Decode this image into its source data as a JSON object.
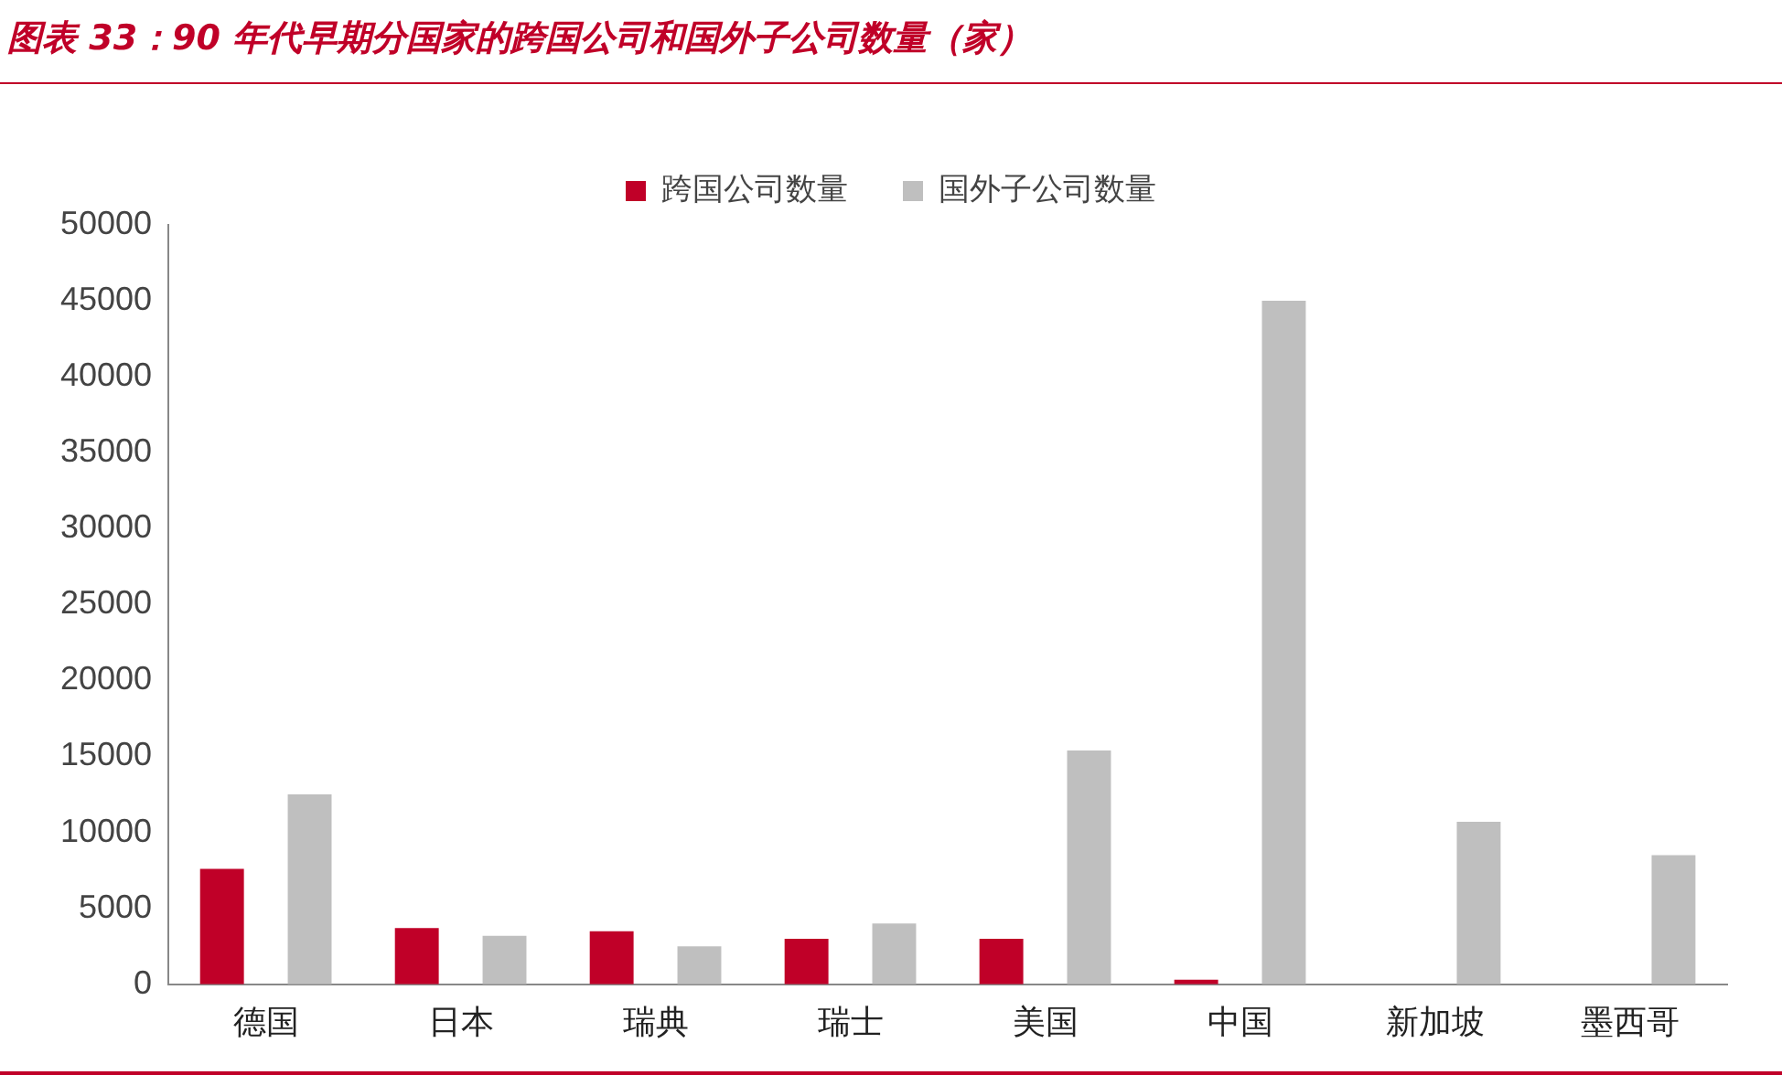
{
  "chart_data": {
    "type": "bar",
    "title": "图表 33：90 年代早期分国家的跨国公司和国外子公司数量（家）",
    "categories": [
      "德国",
      "日本",
      "瑞典",
      "瑞士",
      "美国",
      "中国",
      "新加坡",
      "墨西哥"
    ],
    "series": [
      {
        "name": "跨国公司数量",
        "color": "#c00028",
        "values": [
          7600,
          3700,
          3500,
          3000,
          3000,
          300,
          null,
          null
        ]
      },
      {
        "name": "国外子公司数量",
        "color": "#bfbfbf",
        "values": [
          12500,
          3200,
          2500,
          4000,
          15400,
          45000,
          10700,
          8500
        ]
      }
    ],
    "ylim": [
      0,
      50000
    ],
    "yticks": [
      0,
      5000,
      10000,
      15000,
      20000,
      25000,
      30000,
      35000,
      40000,
      45000,
      50000
    ],
    "grid": false,
    "legend": "top"
  }
}
